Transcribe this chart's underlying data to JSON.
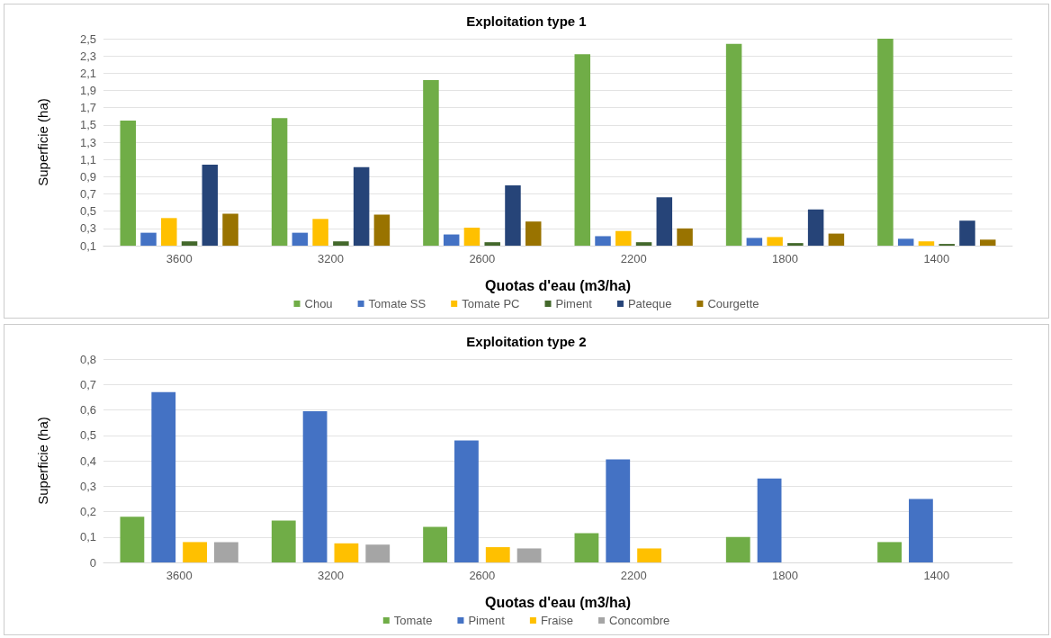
{
  "chart_data": [
    {
      "type": "bar",
      "title": "Exploitation type 1",
      "xlabel": "Quotas d'eau (m3/ha)",
      "ylabel": "Superficie (ha)",
      "categories": [
        "3600",
        "3200",
        "2600",
        "2200",
        "1800",
        "1400"
      ],
      "series": [
        {
          "name": "Chou",
          "color": "#70ad47",
          "values": [
            1.55,
            1.58,
            2.02,
            2.32,
            2.44,
            2.5
          ]
        },
        {
          "name": "Tomate SS",
          "color": "#4472c4",
          "values": [
            0.25,
            0.25,
            0.23,
            0.21,
            0.19,
            0.18
          ]
        },
        {
          "name": "Tomate PC",
          "color": "#ffc000",
          "values": [
            0.42,
            0.41,
            0.31,
            0.27,
            0.2,
            0.15
          ]
        },
        {
          "name": "Piment",
          "color": "#43682b",
          "values": [
            0.15,
            0.15,
            0.14,
            0.14,
            0.13,
            0.12
          ]
        },
        {
          "name": "Pateque",
          "color": "#264478",
          "values": [
            1.04,
            1.01,
            0.8,
            0.66,
            0.52,
            0.39
          ]
        },
        {
          "name": "Courgette",
          "color": "#997300",
          "values": [
            0.47,
            0.46,
            0.38,
            0.3,
            0.24,
            0.17
          ]
        }
      ],
      "ylim": [
        0.1,
        2.5
      ],
      "yticks": [
        {
          "value": 0.1,
          "label": "0,1"
        },
        {
          "value": 0.3,
          "label": "0,3"
        },
        {
          "value": 0.5,
          "label": "0,5"
        },
        {
          "value": 0.7,
          "label": "0,7"
        },
        {
          "value": 0.9,
          "label": "0,9"
        },
        {
          "value": 1.1,
          "label": "1,1"
        },
        {
          "value": 1.3,
          "label": "1,3"
        },
        {
          "value": 1.5,
          "label": "1,5"
        },
        {
          "value": 1.7,
          "label": "1,7"
        },
        {
          "value": 1.9,
          "label": "1,9"
        },
        {
          "value": 2.1,
          "label": "2,1"
        },
        {
          "value": 2.3,
          "label": "2,3"
        },
        {
          "value": 2.5,
          "label": "2,5"
        }
      ],
      "grid": "y",
      "legend": "bottom"
    },
    {
      "type": "bar",
      "title": "Exploitation type 2",
      "xlabel": "Quotas d'eau (m3/ha)",
      "ylabel": "Superficie (ha)",
      "categories": [
        "3600",
        "3200",
        "2600",
        "2200",
        "1800",
        "1400"
      ],
      "series": [
        {
          "name": "Tomate",
          "color": "#70ad47",
          "values": [
            0.18,
            0.165,
            0.14,
            0.115,
            0.1,
            0.08
          ]
        },
        {
          "name": "Piment",
          "color": "#4472c4",
          "values": [
            0.67,
            0.595,
            0.48,
            0.405,
            0.33,
            0.25
          ]
        },
        {
          "name": "Fraise",
          "color": "#ffc000",
          "values": [
            0.08,
            0.075,
            0.06,
            0.055,
            null,
            null
          ]
        },
        {
          "name": "Concombre",
          "color": "#a5a5a5",
          "values": [
            0.08,
            0.07,
            0.055,
            null,
            null,
            null
          ]
        }
      ],
      "ylim": [
        0,
        0.8
      ],
      "yticks": [
        0,
        {
          "value": 0.1,
          "label": "0,1"
        },
        {
          "value": 0.2,
          "label": "0,2"
        },
        {
          "value": 0.3,
          "label": "0,3"
        },
        {
          "value": 0.4,
          "label": "0,4"
        },
        {
          "value": 0.5,
          "label": "0,5"
        },
        {
          "value": 0.6,
          "label": "0,6"
        },
        {
          "value": 0.7,
          "label": "0,7"
        },
        {
          "value": 0.8,
          "label": "0,8"
        }
      ],
      "grid": "y",
      "legend": "bottom"
    }
  ]
}
